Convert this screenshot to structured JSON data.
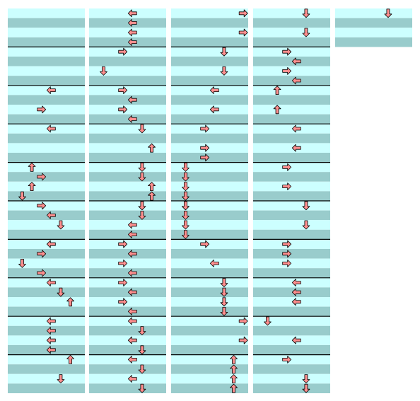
{
  "step_chart": {
    "lanes": 8,
    "beats_per_measure": 4,
    "columns": [
      {
        "beats": 40,
        "notes": [
          [
            8,
            4
          ],
          [
            10,
            3
          ],
          [
            12,
            4
          ],
          [
            16,
            2
          ],
          [
            17,
            3
          ],
          [
            18,
            2
          ],
          [
            19,
            1
          ],
          [
            20,
            3
          ],
          [
            21,
            4
          ],
          [
            22,
            5
          ],
          [
            24,
            4
          ],
          [
            25,
            3
          ],
          [
            26,
            1
          ],
          [
            27,
            3
          ],
          [
            28,
            4
          ],
          [
            29,
            5
          ],
          [
            30,
            6
          ],
          [
            32,
            4
          ],
          [
            33,
            4
          ],
          [
            34,
            4
          ],
          [
            35,
            4
          ],
          [
            36,
            6
          ],
          [
            38,
            5
          ]
        ]
      },
      {
        "beats": 40,
        "notes": [
          [
            0,
            4
          ],
          [
            1,
            4
          ],
          [
            2,
            4
          ],
          [
            3,
            4
          ],
          [
            4,
            3
          ],
          [
            6,
            1
          ],
          [
            8,
            3
          ],
          [
            9,
            4
          ],
          [
            10,
            3
          ],
          [
            11,
            4
          ],
          [
            12,
            5
          ],
          [
            14,
            6
          ],
          [
            16,
            5
          ],
          [
            17,
            5
          ],
          [
            18,
            6
          ],
          [
            19,
            6
          ],
          [
            20,
            5
          ],
          [
            21,
            5
          ],
          [
            22,
            4
          ],
          [
            23,
            4
          ],
          [
            24,
            3
          ],
          [
            25,
            4
          ],
          [
            26,
            3
          ],
          [
            27,
            4
          ],
          [
            28,
            3
          ],
          [
            29,
            4
          ],
          [
            30,
            3
          ],
          [
            31,
            4
          ],
          [
            32,
            4
          ],
          [
            33,
            5
          ],
          [
            34,
            4
          ],
          [
            35,
            5
          ],
          [
            36,
            4
          ],
          [
            37,
            5
          ],
          [
            38,
            4
          ],
          [
            39,
            5
          ]
        ]
      },
      {
        "beats": 40,
        "notes": [
          [
            0,
            7
          ],
          [
            2,
            7
          ],
          [
            4,
            5
          ],
          [
            6,
            5
          ],
          [
            8,
            4
          ],
          [
            10,
            4
          ],
          [
            12,
            3
          ],
          [
            14,
            3
          ],
          [
            15,
            3
          ],
          [
            16,
            1
          ],
          [
            17,
            1
          ],
          [
            18,
            1
          ],
          [
            19,
            1
          ],
          [
            20,
            1
          ],
          [
            21,
            1
          ],
          [
            22,
            1
          ],
          [
            23,
            1
          ],
          [
            24,
            3
          ],
          [
            26,
            4
          ],
          [
            28,
            5
          ],
          [
            29,
            5
          ],
          [
            30,
            5
          ],
          [
            31,
            5
          ],
          [
            32,
            7
          ],
          [
            34,
            7
          ],
          [
            36,
            6
          ],
          [
            37,
            6
          ],
          [
            38,
            6
          ],
          [
            39,
            6
          ]
        ]
      },
      {
        "beats": 40,
        "notes": [
          [
            0,
            5
          ],
          [
            2,
            5
          ],
          [
            4,
            3
          ],
          [
            5,
            4
          ],
          [
            6,
            3
          ],
          [
            7,
            4
          ],
          [
            8,
            2
          ],
          [
            10,
            2
          ],
          [
            12,
            4
          ],
          [
            14,
            4
          ],
          [
            16,
            3
          ],
          [
            18,
            3
          ],
          [
            20,
            5
          ],
          [
            22,
            5
          ],
          [
            24,
            3
          ],
          [
            25,
            3
          ],
          [
            26,
            3
          ],
          [
            28,
            4
          ],
          [
            29,
            4
          ],
          [
            30,
            4
          ],
          [
            32,
            1
          ],
          [
            34,
            4
          ],
          [
            36,
            3
          ],
          [
            38,
            5
          ],
          [
            39,
            5
          ]
        ]
      },
      {
        "beats": 4,
        "notes": [
          [
            0,
            5
          ]
        ]
      }
    ]
  }
}
